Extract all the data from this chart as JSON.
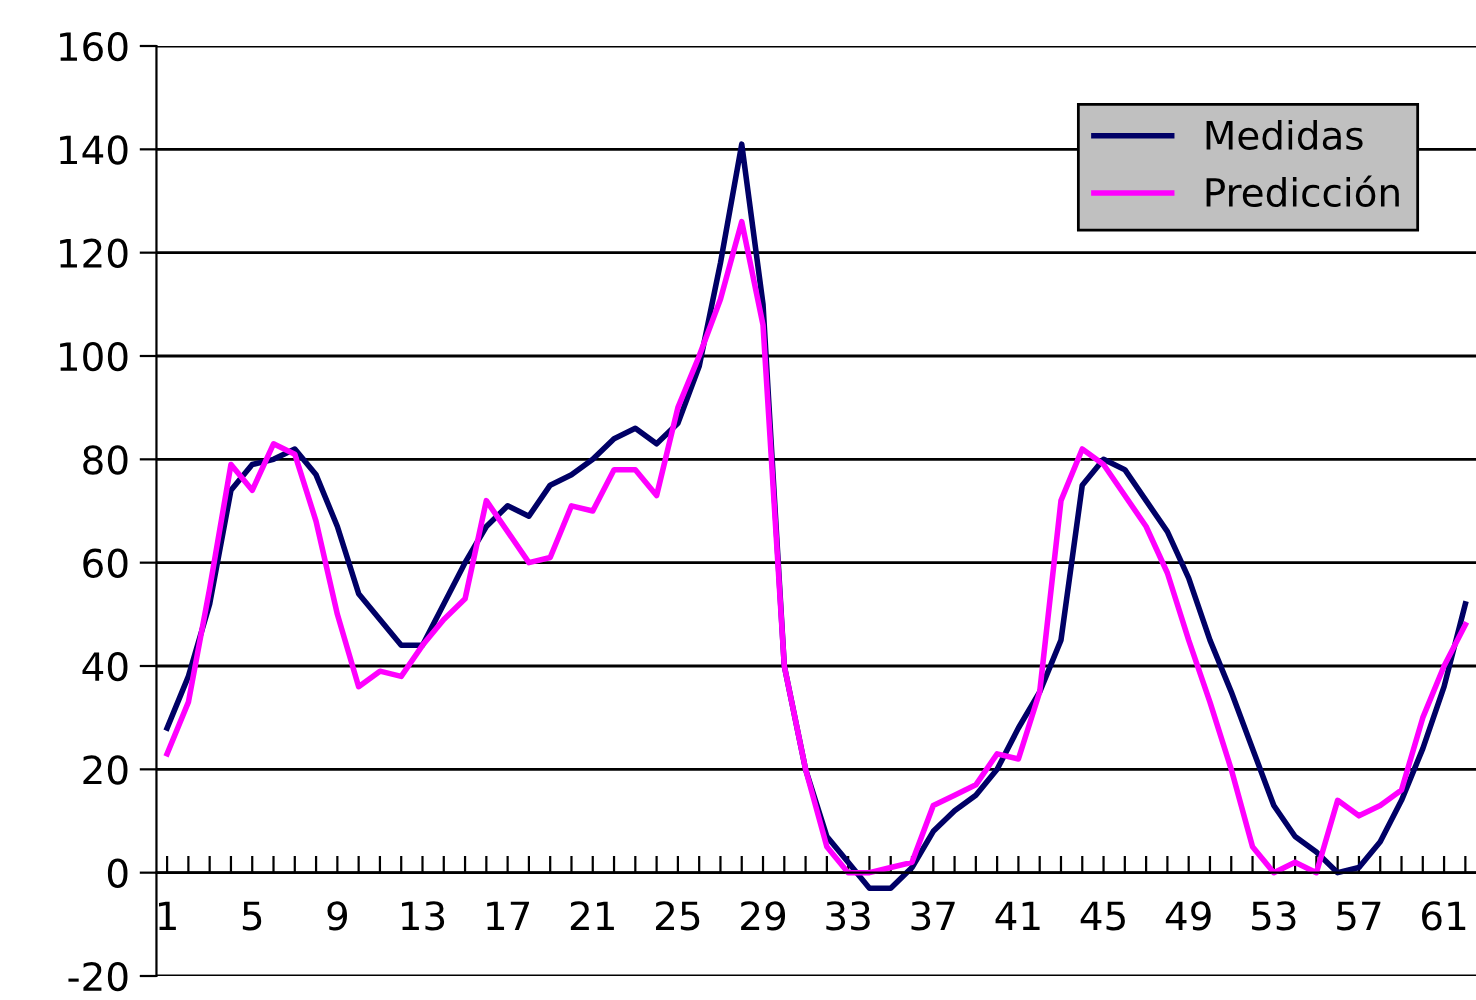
{
  "chart_data": {
    "type": "line",
    "categories": [
      "1",
      null,
      null,
      null,
      "5",
      null,
      null,
      null,
      "9",
      null,
      null,
      null,
      "13",
      null,
      null,
      null,
      "17",
      null,
      null,
      null,
      "21",
      null,
      null,
      null,
      "25",
      null,
      null,
      null,
      "29",
      null,
      null,
      null,
      "33",
      null,
      null,
      null,
      "37",
      null,
      null,
      null,
      "41",
      null,
      null,
      null,
      "45",
      null,
      null,
      null,
      "49",
      null,
      null,
      null,
      "53",
      null,
      null,
      null,
      "57",
      null,
      null,
      null,
      "61",
      null
    ],
    "series": [
      {
        "name": "Medidas",
        "color": "#000066",
        "values": [
          28,
          38,
          52,
          74,
          79,
          80,
          82,
          77,
          67,
          54,
          49,
          44,
          44,
          52,
          60,
          67,
          71,
          69,
          75,
          77,
          80,
          84,
          86,
          83,
          87,
          98,
          118,
          141,
          110,
          40,
          20,
          7,
          2,
          -3,
          -3,
          1,
          8,
          12,
          15,
          20,
          28,
          35,
          45,
          75,
          80,
          78,
          72,
          66,
          57,
          45,
          35,
          24,
          13,
          7,
          4,
          0,
          1,
          6,
          14,
          24,
          36,
          52
        ]
      },
      {
        "name": "Predicción",
        "color": "#ff00ff",
        "values": [
          23,
          33,
          55,
          79,
          74,
          83,
          81,
          68,
          50,
          36,
          39,
          38,
          44,
          49,
          53,
          72,
          66,
          60,
          61,
          71,
          70,
          78,
          78,
          73,
          90,
          100,
          111,
          126,
          106,
          40,
          20,
          5,
          0,
          0,
          1,
          2,
          13,
          15,
          17,
          23,
          22,
          35,
          72,
          82,
          79,
          73,
          67,
          58,
          45,
          33,
          20,
          5,
          0,
          2,
          0,
          14,
          11,
          13,
          16,
          30,
          40,
          48
        ]
      }
    ],
    "ylim": [
      -20,
      160
    ],
    "yticks": [
      -20,
      0,
      20,
      40,
      60,
      80,
      100,
      120,
      140,
      160
    ],
    "grid": "y",
    "legend": "top right",
    "marker": "none",
    "line_style": "solid"
  }
}
